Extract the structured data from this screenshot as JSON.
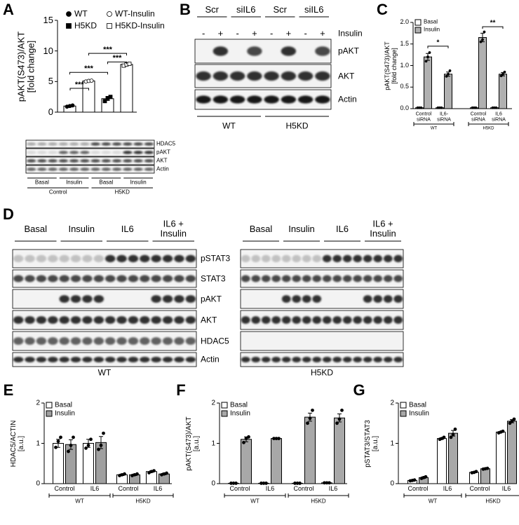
{
  "chart_data": [
    {
      "type": "bar",
      "panel": "A",
      "ylabel": "pAKT(S473)/AKT\n[fold change]",
      "ylim": [
        0,
        15
      ],
      "yticks": [
        0,
        5,
        10,
        15
      ],
      "legend": "top-left",
      "categories": [
        null
      ],
      "series": [
        {
          "name": "WT",
          "color": "#ffffff",
          "marker": "circle",
          "filled": true,
          "values": [
            1.0
          ],
          "errors": [
            0.15
          ],
          "points": [
            [
              0.9,
              1.0,
              1.1
            ]
          ]
        },
        {
          "name": "WT-Insulin",
          "color": "#ffffff",
          "marker": "circle",
          "filled": false,
          "values": [
            5.1
          ],
          "errors": [
            0.1
          ],
          "points": [
            [
              5.0,
              5.1,
              5.15
            ]
          ]
        },
        {
          "name": "H5KD",
          "color": "#ffffff",
          "marker": "square",
          "filled": true,
          "values": [
            2.2
          ],
          "errors": [
            0.3
          ],
          "points": [
            [
              1.8,
              2.3,
              2.5
            ]
          ]
        },
        {
          "name": "H5KD-Insulin",
          "color": "#ffffff",
          "marker": "square",
          "filled": false,
          "values": [
            7.8
          ],
          "errors": [
            0.15
          ],
          "points": [
            [
              7.6,
              7.8,
              7.9
            ]
          ]
        }
      ],
      "annotations": [
        "***",
        "***",
        "***",
        "***"
      ]
    },
    {
      "type": "bar",
      "panel": "C",
      "ylabel": "pAKT(S473)/AKT\n[fold change]",
      "ylim": [
        0,
        2
      ],
      "yticks": [
        {
          "value": 0,
          "label": "0.0"
        },
        0.5,
        {
          "value": 1,
          "label": "1.0"
        },
        1.5,
        {
          "value": 2,
          "label": "2.0"
        }
      ],
      "legend": "top-left",
      "categories": [
        "Control\nsiRNA",
        "IL6-\nsiRNA",
        "Control\nsiRNA",
        "IL6\nsiRNA"
      ],
      "groups": [
        "WT",
        "H5KD"
      ],
      "series": [
        {
          "name": "Basal",
          "color": "#ffffff",
          "values": [
            0.02,
            0.02,
            0.02,
            0.02
          ],
          "errors": [
            0.005,
            0.005,
            0.005,
            0.005
          ],
          "points": [
            [
              0.02,
              0.02,
              0.02
            ],
            [
              0.02,
              0.02,
              0.02
            ],
            [
              0.02,
              0.02,
              0.02
            ],
            [
              0.02,
              0.02,
              0.02
            ]
          ]
        },
        {
          "name": "Insulin",
          "color": "#b0b0b0",
          "values": [
            1.2,
            0.8,
            1.65,
            0.8
          ],
          "errors": [
            0.08,
            0.05,
            0.1,
            0.04
          ],
          "points": [
            [
              1.1,
              1.2,
              1.3
            ],
            [
              0.75,
              0.8,
              0.88
            ],
            [
              1.55,
              1.6,
              1.78
            ],
            [
              0.76,
              0.8,
              0.85
            ]
          ]
        }
      ],
      "annotations": [
        "*",
        "**"
      ]
    },
    {
      "type": "bar",
      "panel": "E",
      "ylabel": "HDAC5/ACTIN\n[a.u.]",
      "ylim": [
        0,
        2
      ],
      "yticks": [
        0,
        1,
        2
      ],
      "legend": "top-left",
      "categories": [
        "Control",
        "IL6",
        "Control",
        "IL6"
      ],
      "groups": [
        "WT",
        "H5KD"
      ],
      "series": [
        {
          "name": "Basal",
          "color": "#ffffff",
          "values": [
            1.0,
            1.0,
            0.22,
            0.3
          ],
          "errors": [
            0.1,
            0.1,
            0.02,
            0.02
          ],
          "points": [
            [
              0.9,
              1.05,
              1.15
            ],
            [
              0.88,
              0.95,
              1.1
            ],
            [
              0.2,
              0.22,
              0.24
            ],
            [
              0.27,
              0.3,
              0.32
            ]
          ]
        },
        {
          "name": "Insulin",
          "color": "#a0a0a0",
          "values": [
            0.97,
            1.02,
            0.22,
            0.24
          ],
          "errors": [
            0.12,
            0.15,
            0.02,
            0.02
          ],
          "points": [
            [
              0.8,
              0.95,
              1.15
            ],
            [
              0.85,
              0.95,
              1.25
            ],
            [
              0.2,
              0.22,
              0.24
            ],
            [
              0.22,
              0.24,
              0.26
            ]
          ]
        }
      ]
    },
    {
      "type": "bar",
      "panel": "F",
      "ylabel": "pAKT(S473)/AKT\n[a.u.]",
      "ylim": [
        0,
        2
      ],
      "yticks": [
        0,
        1,
        2
      ],
      "legend": "top-left",
      "categories": [
        "Control",
        "IL6",
        "Control",
        "IL6"
      ],
      "groups": [
        "WT",
        "H5KD"
      ],
      "series": [
        {
          "name": "Basal",
          "color": "#ffffff",
          "values": [
            0.01,
            0.01,
            0.01,
            0.02
          ],
          "errors": [
            0.002,
            0.002,
            0.002,
            0.003
          ],
          "points": [
            [
              0.01,
              0.01,
              0.01
            ],
            [
              0.01,
              0.01,
              0.01
            ],
            [
              0.01,
              0.01,
              0.01
            ],
            [
              0.02,
              0.02,
              0.02
            ]
          ]
        },
        {
          "name": "Insulin",
          "color": "#a8a8a8",
          "values": [
            1.1,
            1.12,
            1.65,
            1.63
          ],
          "errors": [
            0.06,
            0.01,
            0.1,
            0.1
          ],
          "points": [
            [
              1.02,
              1.12,
              1.16
            ],
            [
              1.12,
              1.12,
              1.12
            ],
            [
              1.5,
              1.62,
              1.82
            ],
            [
              1.5,
              1.6,
              1.82
            ]
          ]
        }
      ]
    },
    {
      "type": "bar",
      "panel": "G",
      "ylabel": "pSTAT3/STAT3\n[a.u.]",
      "ylim": [
        0,
        2
      ],
      "yticks": [
        0,
        1,
        2
      ],
      "legend": "top-left",
      "categories": [
        "Control",
        "IL6",
        "Control",
        "IL6"
      ],
      "groups": [
        "WT",
        "H5KD"
      ],
      "series": [
        {
          "name": "Basal",
          "color": "#ffffff",
          "values": [
            0.08,
            1.12,
            0.28,
            1.28
          ],
          "errors": [
            0.01,
            0.02,
            0.01,
            0.01
          ],
          "points": [
            [
              0.07,
              0.08,
              0.09
            ],
            [
              1.1,
              1.12,
              1.15
            ],
            [
              0.27,
              0.28,
              0.3
            ],
            [
              1.26,
              1.28,
              1.3
            ]
          ]
        },
        {
          "name": "Insulin",
          "color": "#a8a8a8",
          "values": [
            0.15,
            1.25,
            0.37,
            1.55
          ],
          "errors": [
            0.02,
            0.07,
            0.01,
            0.04
          ],
          "points": [
            [
              0.13,
              0.15,
              0.17
            ],
            [
              1.15,
              1.22,
              1.35
            ],
            [
              0.36,
              0.37,
              0.38
            ],
            [
              1.5,
              1.55,
              1.6
            ]
          ]
        }
      ]
    }
  ],
  "blots": [
    {
      "panel": "A",
      "rows": [
        "HDAC5",
        "pAKT",
        "AKT",
        "Actin"
      ],
      "conditions": [
        "Basal",
        "Insulin",
        "Basal",
        "Insulin"
      ],
      "groups": [
        "Control",
        "H5KD"
      ]
    },
    {
      "panel": "B",
      "headers": [
        "Scr",
        "siIL6",
        "Scr",
        "siIL6"
      ],
      "treatment": "Insulin",
      "lanes": [
        "-",
        "+",
        "-",
        "+",
        "-",
        "+",
        "-",
        "+"
      ],
      "rows": [
        "pAKT",
        "AKT",
        "Actin"
      ],
      "groups": [
        "WT",
        "H5KD"
      ]
    },
    {
      "panel": "D",
      "conditions": [
        "Basal",
        "Insulin",
        "IL6",
        "IL6 +\nInsulin"
      ],
      "rows": [
        "pSTAT3",
        "STAT3",
        "pAKT",
        "AKT",
        "HDAC5",
        "Actin"
      ],
      "groups": [
        "WT",
        "H5KD"
      ]
    }
  ]
}
